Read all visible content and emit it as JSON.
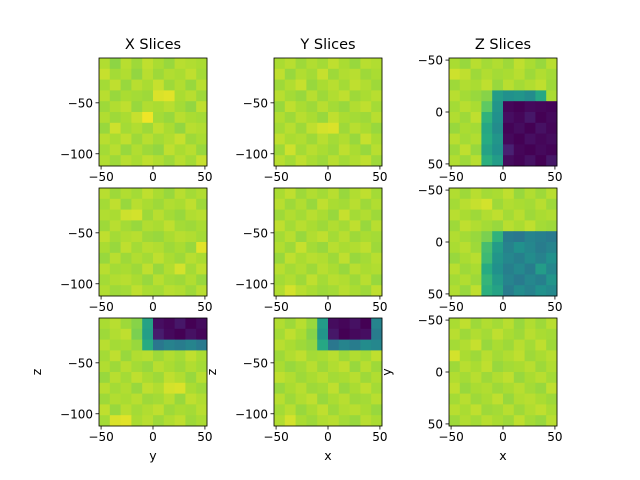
{
  "figure": {
    "column_titles": [
      "X Slices",
      "Y Slices",
      "Z Slices"
    ],
    "colormap": "viridis",
    "color_range": [
      0,
      1
    ]
  },
  "chart_data": [
    {
      "type": "heatmap",
      "row": 0,
      "col": 0,
      "title": "X Slices",
      "xlabel": "",
      "ylabel": "",
      "xlim": [
        -52,
        52
      ],
      "ylim": [
        -112,
        -6
      ],
      "xticks": [
        -50,
        0,
        50
      ],
      "yticks": [
        -50,
        -100
      ],
      "y_inverted": false,
      "cells": [
        [
          0.89,
          0.83,
          0.9,
          0.86,
          0.91,
          0.88,
          0.85,
          0.9,
          0.89,
          0.88
        ],
        [
          0.92,
          0.87,
          0.89,
          0.84,
          0.9,
          0.86,
          0.89,
          0.88,
          0.91,
          0.87
        ],
        [
          0.87,
          0.91,
          0.85,
          0.9,
          0.88,
          0.92,
          0.86,
          0.89,
          0.85,
          0.9
        ],
        [
          0.9,
          0.85,
          0.88,
          0.87,
          0.86,
          0.95,
          0.96,
          0.88,
          0.9,
          0.86
        ],
        [
          0.86,
          0.89,
          0.91,
          0.85,
          0.89,
          0.88,
          0.9,
          0.87,
          0.84,
          0.91
        ],
        [
          0.89,
          0.86,
          0.88,
          0.92,
          0.98,
          0.87,
          0.85,
          0.9,
          0.88,
          0.87
        ],
        [
          0.85,
          0.93,
          0.87,
          0.89,
          0.86,
          0.91,
          0.88,
          0.84,
          0.9,
          0.89
        ],
        [
          0.9,
          0.88,
          0.91,
          0.86,
          0.9,
          0.87,
          0.89,
          0.92,
          0.86,
          0.88
        ],
        [
          0.87,
          0.9,
          0.85,
          0.89,
          0.86,
          0.84,
          0.91,
          0.88,
          0.9,
          0.85
        ],
        [
          0.89,
          0.86,
          0.9,
          0.88,
          0.91,
          0.89,
          0.86,
          0.9,
          0.87,
          0.92
        ]
      ]
    },
    {
      "type": "heatmap",
      "row": 0,
      "col": 1,
      "title": "Y Slices",
      "xlabel": "",
      "ylabel": "",
      "xlim": [
        -52,
        52
      ],
      "ylim": [
        -112,
        -6
      ],
      "xticks": [
        -50,
        0,
        50
      ],
      "yticks": [
        -50,
        -100
      ],
      "y_inverted": false,
      "cells": [
        [
          0.88,
          0.9,
          0.86,
          0.89,
          0.87,
          0.91,
          0.88,
          0.85,
          0.9,
          0.89
        ],
        [
          0.91,
          0.85,
          0.89,
          0.87,
          0.92,
          0.86,
          0.89,
          0.9,
          0.86,
          0.88
        ],
        [
          0.86,
          0.89,
          0.92,
          0.85,
          0.88,
          0.9,
          0.87,
          0.91,
          0.89,
          0.86
        ],
        [
          0.9,
          0.87,
          0.85,
          0.9,
          0.86,
          0.89,
          0.91,
          0.86,
          0.88,
          0.9
        ],
        [
          0.85,
          0.91,
          0.88,
          0.86,
          0.9,
          0.87,
          0.85,
          0.89,
          0.91,
          0.87
        ],
        [
          0.89,
          0.86,
          0.9,
          0.88,
          0.85,
          0.91,
          0.88,
          0.87,
          0.86,
          0.9
        ],
        [
          0.87,
          0.9,
          0.86,
          0.91,
          0.94,
          0.95,
          0.86,
          0.9,
          0.88,
          0.85
        ],
        [
          0.91,
          0.88,
          0.89,
          0.86,
          0.9,
          0.87,
          0.89,
          0.85,
          0.92,
          0.88
        ],
        [
          0.86,
          0.93,
          0.87,
          0.9,
          0.88,
          0.86,
          0.91,
          0.88,
          0.85,
          0.9
        ],
        [
          0.9,
          0.87,
          0.91,
          0.88,
          0.86,
          0.9,
          0.87,
          0.89,
          0.91,
          0.86
        ]
      ]
    },
    {
      "type": "heatmap",
      "row": 0,
      "col": 2,
      "title": "Z Slices",
      "xlabel": "",
      "ylabel": "",
      "xlim": [
        -52,
        52
      ],
      "ylim": [
        -52,
        52
      ],
      "xticks": [
        -50,
        0,
        50
      ],
      "yticks": [
        -50,
        0,
        50
      ],
      "y_inverted": true,
      "cells": [
        [
          0.88,
          0.85,
          0.9,
          0.87,
          0.89,
          0.86,
          0.91,
          0.88,
          0.85,
          0.9
        ],
        [
          0.93,
          0.91,
          0.86,
          0.89,
          0.87,
          0.88,
          0.9,
          0.86,
          0.89,
          0.87
        ],
        [
          0.86,
          0.89,
          0.88,
          0.91,
          0.85,
          0.9,
          0.87,
          0.89,
          0.91,
          0.86
        ],
        [
          0.9,
          0.87,
          0.85,
          0.82,
          0.55,
          0.5,
          0.52,
          0.48,
          0.6,
          0.88
        ],
        [
          0.87,
          0.9,
          0.88,
          0.75,
          0.52,
          0.02,
          0.0,
          0.03,
          0.02,
          0.01
        ],
        [
          0.89,
          0.86,
          0.91,
          0.65,
          0.5,
          0.05,
          0.02,
          0.08,
          0.0,
          0.03
        ],
        [
          0.85,
          0.88,
          0.87,
          0.6,
          0.48,
          0.01,
          0.04,
          0.0,
          0.06,
          0.02
        ],
        [
          0.9,
          0.87,
          0.89,
          0.62,
          0.52,
          0.03,
          0.0,
          0.05,
          0.02,
          0.04
        ],
        [
          0.86,
          0.91,
          0.85,
          0.58,
          0.5,
          0.12,
          0.02,
          0.0,
          0.03,
          0.01
        ],
        [
          0.89,
          0.86,
          0.9,
          0.64,
          0.55,
          0.04,
          0.01,
          0.06,
          0.0,
          0.08
        ]
      ]
    },
    {
      "type": "heatmap",
      "row": 1,
      "col": 0,
      "title": "",
      "xlabel": "",
      "ylabel": "",
      "xlim": [
        -52,
        52
      ],
      "ylim": [
        -112,
        -6
      ],
      "xticks": [
        -50,
        0,
        50
      ],
      "yticks": [
        -50,
        -100
      ],
      "y_inverted": false,
      "cells": [
        [
          0.9,
          0.86,
          0.89,
          0.87,
          0.91,
          0.88,
          0.85,
          0.9,
          0.87,
          0.89
        ],
        [
          0.87,
          0.91,
          0.85,
          0.9,
          0.88,
          0.86,
          0.89,
          0.88,
          0.91,
          0.86
        ],
        [
          0.89,
          0.88,
          0.93,
          0.94,
          0.86,
          0.9,
          0.87,
          0.85,
          0.89,
          0.9
        ],
        [
          0.86,
          0.9,
          0.87,
          0.85,
          0.89,
          0.88,
          0.91,
          0.87,
          0.86,
          0.88
        ],
        [
          0.91,
          0.87,
          0.89,
          0.9,
          0.86,
          0.85,
          0.88,
          0.9,
          0.89,
          0.87
        ],
        [
          0.88,
          0.85,
          0.91,
          0.87,
          0.9,
          0.89,
          0.86,
          0.88,
          0.85,
          0.96
        ],
        [
          0.85,
          0.9,
          0.86,
          0.89,
          0.87,
          0.91,
          0.88,
          0.86,
          0.9,
          0.88
        ],
        [
          0.9,
          0.87,
          0.88,
          0.86,
          0.91,
          0.85,
          0.89,
          0.94,
          0.87,
          0.91
        ],
        [
          0.87,
          0.89,
          0.9,
          0.88,
          0.85,
          0.9,
          0.87,
          0.86,
          0.89,
          0.85
        ],
        [
          0.89,
          0.86,
          0.87,
          0.91,
          0.88,
          0.87,
          0.9,
          0.89,
          0.86,
          0.9
        ]
      ]
    },
    {
      "type": "heatmap",
      "row": 1,
      "col": 1,
      "title": "",
      "xlabel": "",
      "ylabel": "",
      "xlim": [
        -52,
        52
      ],
      "ylim": [
        -112,
        -6
      ],
      "xticks": [
        -50,
        0,
        50
      ],
      "yticks": [
        -50,
        -100
      ],
      "y_inverted": false,
      "cells": [
        [
          0.88,
          0.91,
          0.86,
          0.89,
          0.87,
          0.9,
          0.85,
          0.89,
          0.91,
          0.87
        ],
        [
          0.9,
          0.86,
          0.89,
          0.85,
          0.91,
          0.88,
          0.87,
          0.9,
          0.86,
          0.89
        ],
        [
          0.86,
          0.89,
          0.87,
          0.9,
          0.88,
          0.85,
          0.92,
          0.87,
          0.89,
          0.86
        ],
        [
          0.91,
          0.87,
          0.9,
          0.88,
          0.86,
          0.89,
          0.87,
          0.91,
          0.85,
          0.9
        ],
        [
          0.87,
          0.9,
          0.85,
          0.89,
          0.91,
          0.87,
          0.9,
          0.86,
          0.88,
          0.87
        ],
        [
          0.89,
          0.86,
          0.92,
          0.87,
          0.85,
          0.9,
          0.88,
          0.89,
          0.91,
          0.86
        ],
        [
          0.85,
          0.91,
          0.88,
          0.9,
          0.89,
          0.86,
          0.91,
          0.85,
          0.87,
          0.9
        ],
        [
          0.9,
          0.87,
          0.89,
          0.86,
          0.9,
          0.88,
          0.85,
          0.9,
          0.88,
          0.89
        ],
        [
          0.87,
          0.89,
          0.86,
          0.91,
          0.87,
          0.9,
          0.89,
          0.86,
          0.9,
          0.85
        ],
        [
          0.89,
          0.94,
          0.9,
          0.88,
          0.86,
          0.87,
          0.9,
          0.88,
          0.86,
          0.91
        ]
      ]
    },
    {
      "type": "heatmap",
      "row": 1,
      "col": 2,
      "title": "",
      "xlabel": "",
      "ylabel": "",
      "xlim": [
        -52,
        52
      ],
      "ylim": [
        -52,
        52
      ],
      "xticks": [
        -50,
        0,
        50
      ],
      "yticks": [
        -50,
        0,
        50
      ],
      "y_inverted": true,
      "cells": [
        [
          0.89,
          0.86,
          0.9,
          0.87,
          0.88,
          0.91,
          0.85,
          0.89,
          0.86,
          0.9
        ],
        [
          0.87,
          0.9,
          0.92,
          0.94,
          0.86,
          0.89,
          0.88,
          0.87,
          0.9,
          0.86
        ],
        [
          0.9,
          0.88,
          0.86,
          0.89,
          0.91,
          0.87,
          0.9,
          0.86,
          0.88,
          0.89
        ],
        [
          0.86,
          0.91,
          0.89,
          0.87,
          0.85,
          0.9,
          0.88,
          0.91,
          0.87,
          0.86
        ],
        [
          0.89,
          0.87,
          0.85,
          0.8,
          0.65,
          0.42,
          0.4,
          0.45,
          0.43,
          0.41
        ],
        [
          0.88,
          0.9,
          0.86,
          0.7,
          0.55,
          0.44,
          0.5,
          0.46,
          0.42,
          0.45
        ],
        [
          0.85,
          0.88,
          0.9,
          0.68,
          0.52,
          0.46,
          0.43,
          0.48,
          0.44,
          0.5
        ],
        [
          0.9,
          0.86,
          0.88,
          0.62,
          0.5,
          0.43,
          0.47,
          0.42,
          0.55,
          0.46
        ],
        [
          0.87,
          0.89,
          0.86,
          0.66,
          0.54,
          0.45,
          0.41,
          0.46,
          0.43,
          0.52
        ],
        [
          0.89,
          0.85,
          0.91,
          0.64,
          0.58,
          0.42,
          0.48,
          0.44,
          0.5,
          0.47
        ]
      ]
    },
    {
      "type": "heatmap",
      "row": 2,
      "col": 0,
      "title": "",
      "xlabel": "y",
      "ylabel": "z",
      "xlim": [
        -52,
        52
      ],
      "ylim": [
        -112,
        -6
      ],
      "xticks": [
        -50,
        0,
        50
      ],
      "yticks": [
        -50,
        -100
      ],
      "y_inverted": false,
      "cells": [
        [
          0.88,
          0.9,
          0.86,
          0.82,
          0.58,
          0.05,
          0.02,
          0.08,
          0.0,
          0.04
        ],
        [
          0.86,
          0.89,
          0.91,
          0.8,
          0.56,
          0.1,
          0.03,
          0.0,
          0.06,
          0.02
        ],
        [
          0.9,
          0.87,
          0.88,
          0.85,
          0.62,
          0.4,
          0.44,
          0.42,
          0.45,
          0.41
        ],
        [
          0.87,
          0.91,
          0.85,
          0.89,
          0.9,
          0.86,
          0.89,
          0.87,
          0.91,
          0.88
        ],
        [
          0.89,
          0.86,
          0.9,
          0.87,
          0.85,
          0.9,
          0.88,
          0.86,
          0.89,
          0.87
        ],
        [
          0.85,
          0.9,
          0.87,
          0.91,
          0.88,
          0.86,
          0.91,
          0.89,
          0.85,
          0.9
        ],
        [
          0.9,
          0.87,
          0.89,
          0.85,
          0.91,
          0.89,
          0.94,
          0.95,
          0.88,
          0.86
        ],
        [
          0.86,
          0.89,
          0.88,
          0.9,
          0.86,
          0.87,
          0.9,
          0.85,
          0.91,
          0.89
        ],
        [
          0.91,
          0.85,
          0.9,
          0.87,
          0.89,
          0.91,
          0.86,
          0.88,
          0.87,
          0.9
        ],
        [
          0.87,
          0.95,
          0.96,
          0.88,
          0.9,
          0.86,
          0.89,
          0.91,
          0.86,
          0.88
        ]
      ]
    },
    {
      "type": "heatmap",
      "row": 2,
      "col": 1,
      "title": "",
      "xlabel": "x",
      "ylabel": "z",
      "xlim": [
        -52,
        52
      ],
      "ylim": [
        -112,
        -6
      ],
      "xticks": [
        -50,
        0,
        50
      ],
      "yticks": [
        -50,
        -100
      ],
      "y_inverted": false,
      "cells": [
        [
          0.89,
          0.86,
          0.9,
          0.85,
          0.55,
          0.04,
          0.02,
          0.06,
          0.0,
          0.45
        ],
        [
          0.87,
          0.91,
          0.88,
          0.82,
          0.52,
          0.08,
          0.0,
          0.03,
          0.05,
          0.42
        ],
        [
          0.9,
          0.88,
          0.86,
          0.84,
          0.6,
          0.4,
          0.45,
          0.42,
          0.48,
          0.46
        ],
        [
          0.86,
          0.89,
          0.91,
          0.87,
          0.88,
          0.9,
          0.86,
          0.89,
          0.87,
          0.91
        ],
        [
          0.88,
          0.85,
          0.87,
          0.9,
          0.86,
          0.89,
          0.91,
          0.85,
          0.9,
          0.86
        ],
        [
          0.91,
          0.89,
          0.86,
          0.88,
          0.9,
          0.87,
          0.88,
          0.9,
          0.86,
          0.89
        ],
        [
          0.85,
          0.88,
          0.9,
          0.86,
          0.87,
          0.91,
          0.85,
          0.88,
          0.91,
          0.87
        ],
        [
          0.9,
          0.86,
          0.89,
          0.91,
          0.85,
          0.88,
          0.9,
          0.86,
          0.87,
          0.9
        ],
        [
          0.87,
          0.9,
          0.85,
          0.88,
          0.91,
          0.86,
          0.89,
          0.9,
          0.88,
          0.85
        ],
        [
          0.89,
          0.94,
          0.88,
          0.86,
          0.89,
          0.9,
          0.87,
          0.85,
          0.9,
          0.88
        ]
      ]
    },
    {
      "type": "heatmap",
      "row": 2,
      "col": 2,
      "title": "",
      "xlabel": "x",
      "ylabel": "y",
      "xlim": [
        -52,
        52
      ],
      "ylim": [
        -52,
        52
      ],
      "xticks": [
        -50,
        0,
        50
      ],
      "yticks": [
        -50,
        0,
        50
      ],
      "y_inverted": true,
      "cells": [
        [
          0.88,
          0.91,
          0.86,
          0.89,
          0.87,
          0.9,
          0.85,
          0.89,
          0.86,
          0.9
        ],
        [
          0.9,
          0.86,
          0.89,
          0.87,
          0.91,
          0.88,
          0.86,
          0.9,
          0.88,
          0.87
        ],
        [
          0.87,
          0.89,
          0.92,
          0.85,
          0.88,
          0.86,
          0.9,
          0.87,
          0.91,
          0.86
        ],
        [
          0.94,
          0.88,
          0.86,
          0.9,
          0.87,
          0.89,
          0.91,
          0.86,
          0.88,
          0.9
        ],
        [
          0.86,
          0.9,
          0.88,
          0.91,
          0.85,
          0.87,
          0.88,
          0.9,
          0.86,
          0.89
        ],
        [
          0.89,
          0.87,
          0.9,
          0.86,
          0.89,
          0.91,
          0.85,
          0.88,
          0.9,
          0.87
        ],
        [
          0.91,
          0.85,
          0.88,
          0.89,
          0.86,
          0.88,
          0.9,
          0.87,
          0.85,
          0.91
        ],
        [
          0.87,
          0.9,
          0.86,
          0.88,
          0.91,
          0.85,
          0.89,
          0.9,
          0.88,
          0.86
        ],
        [
          0.9,
          0.88,
          0.91,
          0.86,
          0.87,
          0.9,
          0.86,
          0.89,
          0.91,
          0.88
        ],
        [
          0.86,
          0.89,
          0.87,
          0.9,
          0.88,
          0.86,
          0.91,
          0.87,
          0.85,
          0.9
        ]
      ]
    }
  ]
}
